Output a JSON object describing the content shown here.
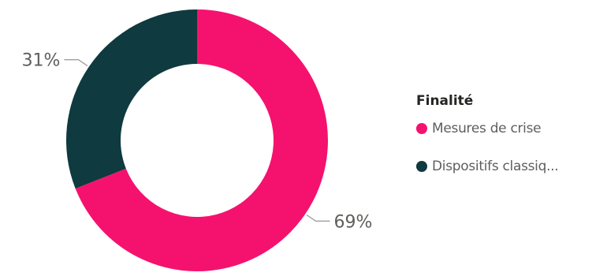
{
  "chart_data": {
    "type": "pie",
    "variant": "donut",
    "legend": {
      "title": "Finalité",
      "placement": "right"
    },
    "slices": [
      {
        "label": "Mesures de crise",
        "value": 69,
        "display": "69%",
        "color": "#f5126e"
      },
      {
        "label": "Dispositifs classiq...",
        "value": 31,
        "display": "31%",
        "color": "#0f3a3f"
      }
    ]
  }
}
